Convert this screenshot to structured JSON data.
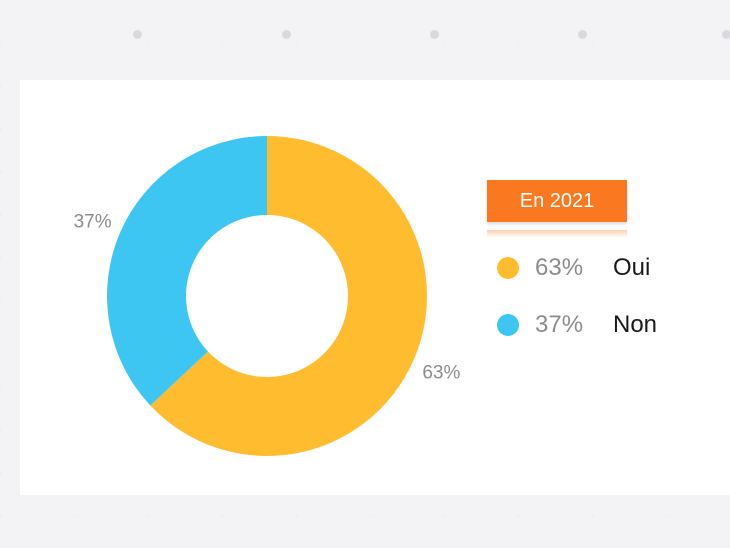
{
  "chart_data": {
    "type": "pie",
    "donut": true,
    "legend_title": "En 2021",
    "slices": [
      {
        "label": "Oui",
        "value": 63,
        "value_label": "63%",
        "color": "#ffbc2f"
      },
      {
        "label": "Non",
        "value": 37,
        "value_label": "37%",
        "color": "#3ec6f2"
      }
    ],
    "legend_position": "right"
  },
  "colors": {
    "accent": "#fa7820"
  }
}
